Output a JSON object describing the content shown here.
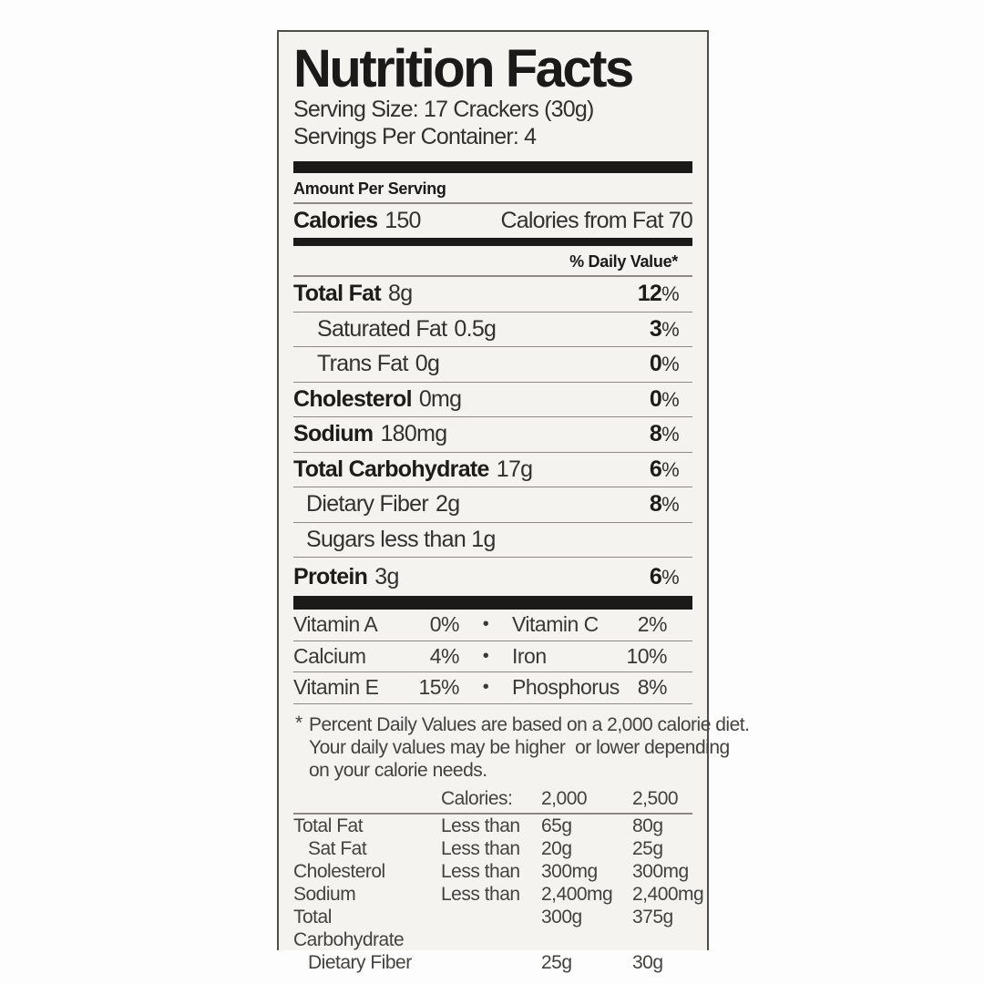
{
  "label": {
    "title": "Nutrition Facts",
    "serving_size": "Serving Size: 17 Crackers (30g)",
    "servings_per_container": "Servings Per Container: 4",
    "amount_per_serving": "Amount Per Serving",
    "calories": {
      "label": "Calories",
      "value": "150",
      "from_fat": "Calories from Fat 70"
    },
    "daily_value_header": "% Daily Value*",
    "percent_sign": "%",
    "nutrients": [
      {
        "name": "Total Fat",
        "amount": "8g",
        "dv": "12"
      },
      {
        "name": "Saturated Fat",
        "amount": "0.5g",
        "dv": "3"
      },
      {
        "name": "Trans Fat",
        "amount": "0g",
        "dv": "0"
      },
      {
        "name": "Cholesterol",
        "amount": "0mg",
        "dv": "0"
      },
      {
        "name": "Sodium",
        "amount": "180mg",
        "dv": "8"
      },
      {
        "name": "Total Carbohydrate",
        "amount": "17g",
        "dv": "6"
      },
      {
        "name": "Dietary Fiber",
        "amount": "2g",
        "dv": "8"
      },
      {
        "name": "Sugars less than 1g",
        "amount": "",
        "dv": ""
      },
      {
        "name": "Protein",
        "amount": "3g",
        "dv": "6"
      }
    ],
    "vitamins_bullet": "•",
    "vitamins": [
      {
        "left_name": "Vitamin A",
        "left_value": "0%",
        "right_name": "Vitamin C",
        "right_value": "2%"
      },
      {
        "left_name": "Calcium",
        "left_value": "4%",
        "right_name": "Iron",
        "right_value": "10%"
      },
      {
        "left_name": "Vitamin E",
        "left_value": "15%",
        "right_name": "Phosphorus",
        "right_value": "8%"
      }
    ],
    "footnote_marker": "*",
    "footnote_lines": [
      "Percent Daily Values are based on a 2,000 calorie diet.",
      "Your daily values may be higher  or lower depending",
      "on your calorie needs."
    ],
    "ref_table": {
      "header": {
        "calories": "Calories:",
        "v2000": "2,000",
        "v2500": "2,500"
      },
      "rows": [
        {
          "name": "Total Fat",
          "qualifier": "Less than",
          "v2000": "65g",
          "v2500": "80g"
        },
        {
          "name": "Sat Fat",
          "qualifier": "Less than",
          "v2000": "20g",
          "v2500": "25g"
        },
        {
          "name": "Cholesterol",
          "qualifier": "Less than",
          "v2000": "300mg",
          "v2500": "300mg"
        },
        {
          "name": "Sodium",
          "qualifier": "Less than",
          "v2000": "2,400mg",
          "v2500": "2,400mg"
        },
        {
          "name": "Total Carbohydrate",
          "qualifier": "",
          "v2000": "300g",
          "v2500": "375g"
        },
        {
          "name": "Dietary Fiber",
          "qualifier": "",
          "v2000": "25g",
          "v2500": "30g"
        }
      ]
    },
    "colors": {
      "panel_bg": "#f4f3f0",
      "text_bold": "#1d1c19",
      "text_regular": "#33312e",
      "hairline": "#8b8885",
      "thick_bar": "#1b1a18",
      "border": "#504e49",
      "background": "#fdfdfd"
    }
  }
}
